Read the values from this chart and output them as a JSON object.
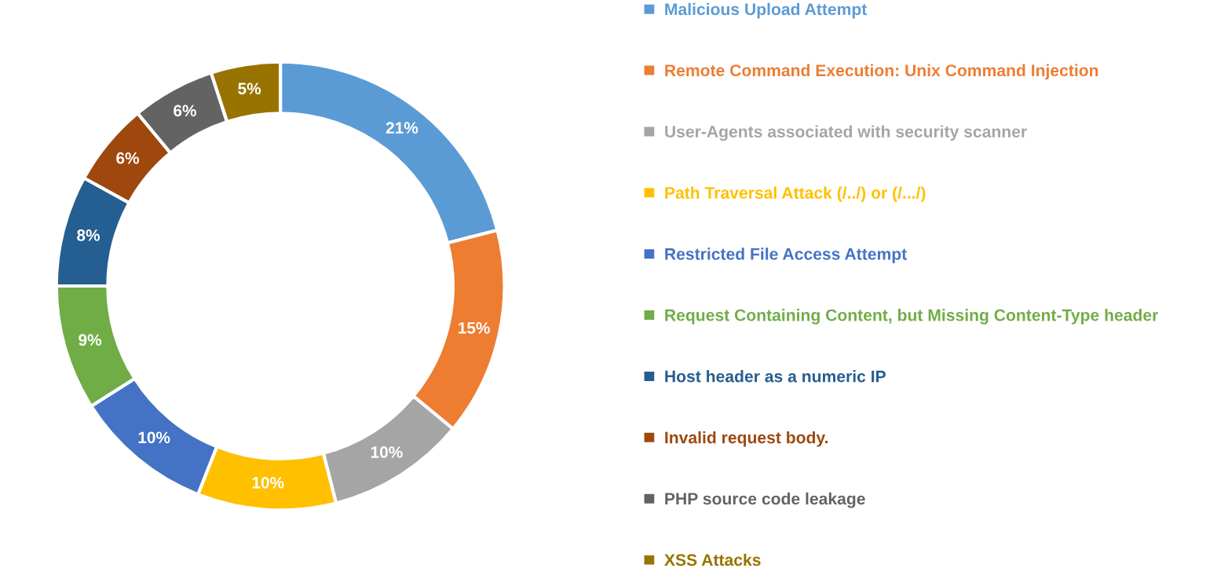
{
  "chart_data": {
    "type": "donut",
    "categories": [
      "Malicious Upload Attempt",
      "Remote Command Execution: Unix Command Injection",
      "User-Agents associated with security scanner",
      "Path Traversal Attack (/../) or (/.../)",
      "Restricted File Access Attempt",
      "Request Containing Content, but Missing Content-Type header",
      "Host header as a numeric IP",
      "Invalid request body.",
      "PHP source code leakage",
      "XSS Attacks"
    ],
    "values": [
      21,
      15,
      10,
      10,
      10,
      9,
      8,
      6,
      6,
      5
    ],
    "colors": [
      "#5b9bd5",
      "#ed7d31",
      "#a5a5a5",
      "#ffc000",
      "#4472c4",
      "#70ad47",
      "#255e91",
      "#9e480e",
      "#636363",
      "#997300"
    ],
    "value_labels": [
      "21%",
      "15%",
      "10%",
      "10%",
      "10%",
      "9%",
      "8%",
      "6%",
      "6%",
      "5%"
    ],
    "legend": "right"
  }
}
